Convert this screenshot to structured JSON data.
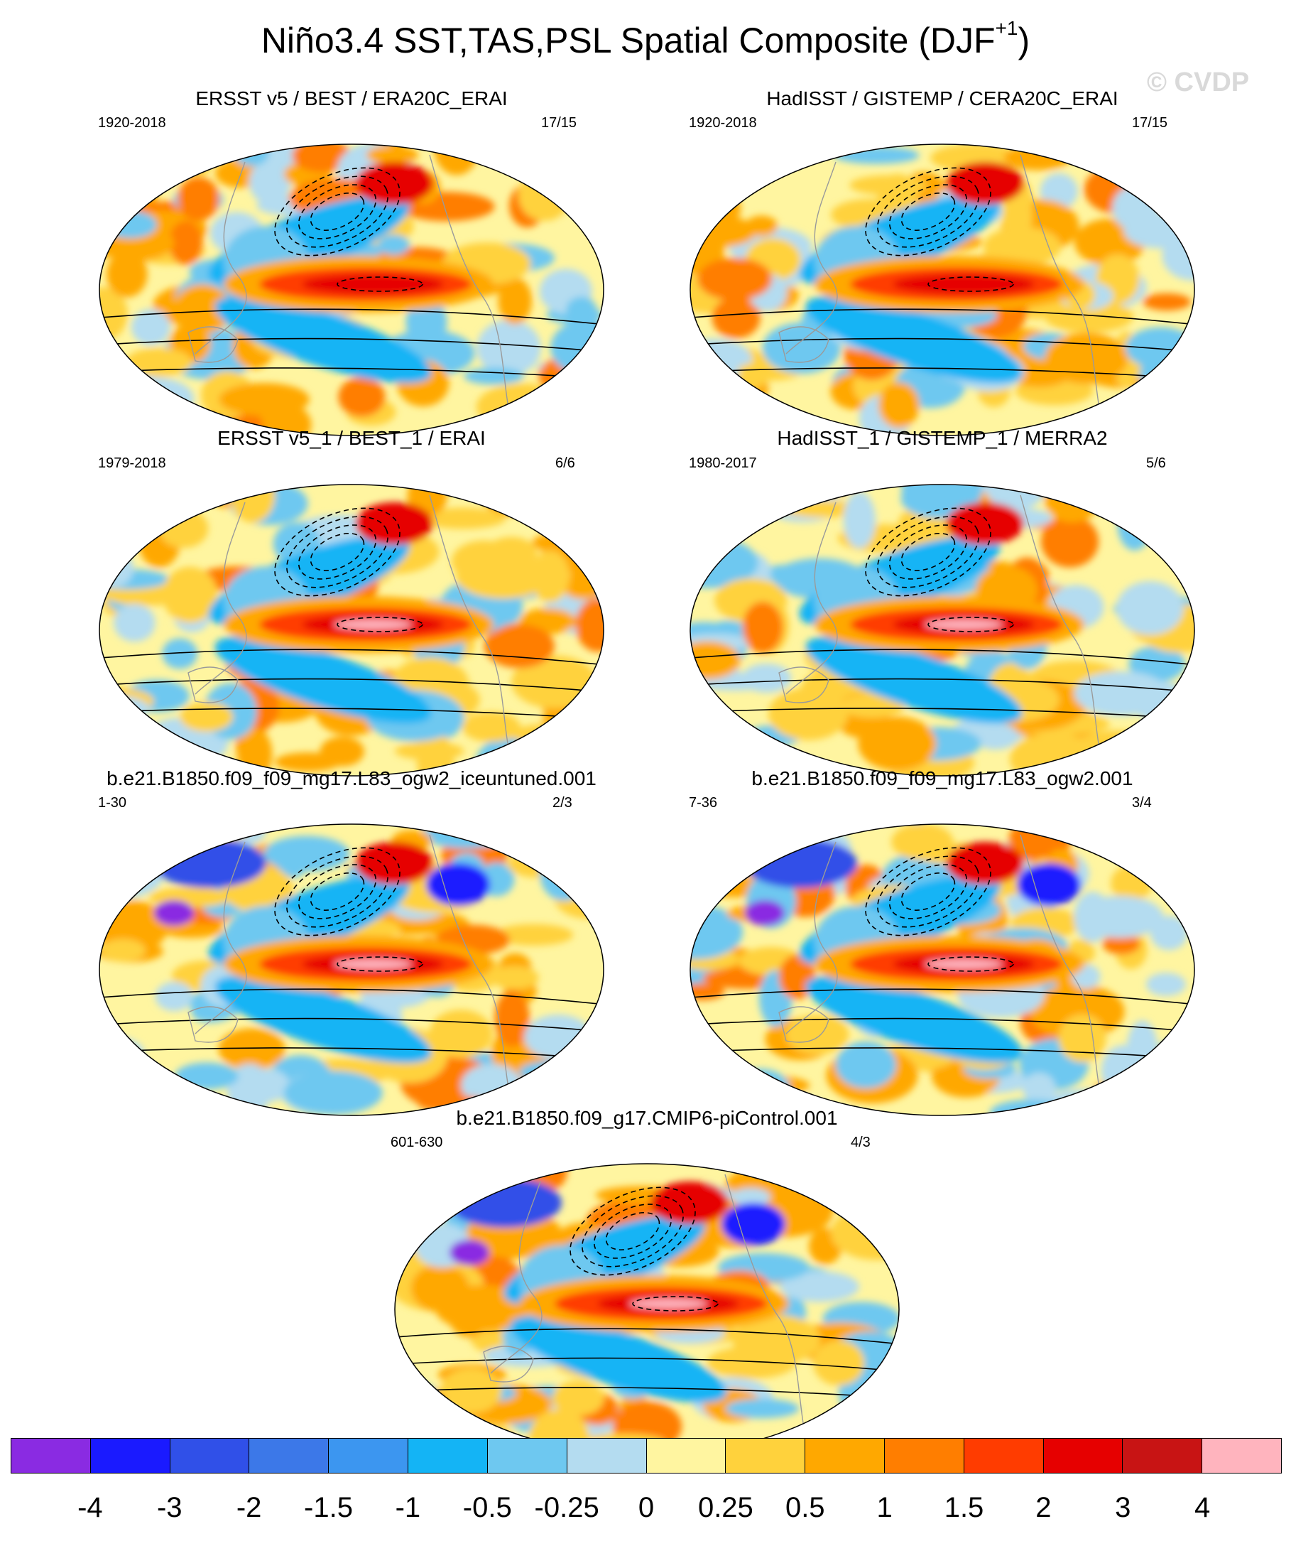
{
  "title": {
    "main": "Niño3.4 SST,TAS,PSL Spatial Composite (DJF",
    "superscript": "+1",
    "close": ")"
  },
  "watermark": "© CVDP",
  "colors": {
    "palette": [
      "#8a2be2",
      "#1a1aff",
      "#3050e8",
      "#3c78e8",
      "#3c96f0",
      "#14b4f5",
      "#6ec8f0",
      "#b4dcf0",
      "#fff5a0",
      "#ffd23c",
      "#ffa800",
      "#ff7e00",
      "#ff3c00",
      "#e60000",
      "#c81414",
      "#ffb4be"
    ],
    "ocean_background": "#fff5a0",
    "warm_tongue": "#e60000",
    "land_outline": "#9a9a9a",
    "contour": "#000000"
  },
  "chart_data": [
    {
      "type": "heatmap",
      "title": "ERSST v5 / BEST / ERA20C_ERAI",
      "period": "1920-2018",
      "count": "17/15",
      "pattern": "observed composite: warm equatorial Pacific cold tongue, cold horseshoe, warm northwest North America"
    },
    {
      "type": "heatmap",
      "title": "HadISST / GISTEMP / CERA20C_ERAI",
      "period": "1920-2018",
      "count": "17/15",
      "pattern": "observed composite: warm equatorial Pacific, cold horseshoe, warm northwest North America"
    },
    {
      "type": "heatmap",
      "title": "ERSST v5_1 / BEST_1 / ERAI",
      "period": "1979-2018",
      "count": "6/6",
      "pattern": "observed composite: strong warm equatorial Pacific, deep Aleutian low"
    },
    {
      "type": "heatmap",
      "title": "HadISST_1 / GISTEMP_1 / MERRA2",
      "period": "1980-2017",
      "count": "5/6",
      "pattern": "observed composite: strong warm equatorial Pacific, deep Aleutian low"
    },
    {
      "type": "heatmap",
      "title": "b.e21.B1850.f09_f09_mg17.L83_ogw2_iceuntuned.001",
      "period": "1-30",
      "count": "2/3",
      "pattern": "model composite: warm equatorial Pacific, cold Eurasia and North America"
    },
    {
      "type": "heatmap",
      "title": "b.e21.B1850.f09_f09_mg17.L83_ogw2.001",
      "period": "7-36",
      "count": "3/4",
      "pattern": "model composite: warm equatorial Pacific, cold eastern North America"
    },
    {
      "type": "heatmap",
      "title": "b.e21.B1850.f09_g17.CMIP6-piControl.001",
      "period": "601-630",
      "count": "4/3",
      "pattern": "model composite: warm equatorial Pacific, high pressure over North Atlantic"
    }
  ],
  "colorbar": {
    "labels": [
      "-4",
      "-3",
      "-2",
      "-1.5",
      "-1",
      "-0.5",
      "-0.25",
      "0",
      "0.25",
      "0.5",
      "1",
      "1.5",
      "2",
      "3",
      "4"
    ]
  }
}
